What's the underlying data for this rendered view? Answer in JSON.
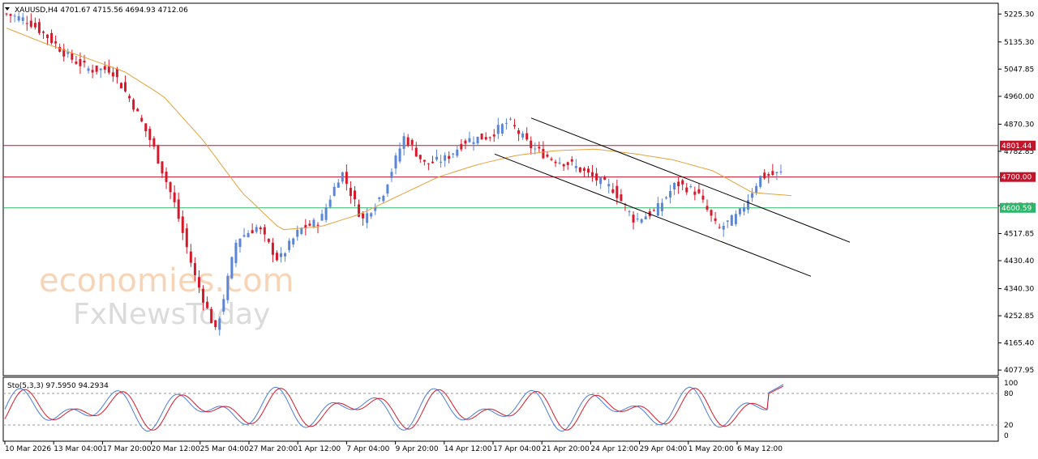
{
  "header": {
    "symbol": "XAUUSD,H4",
    "ohlc": "4701.67 4715.56 4694.93 4712.06"
  },
  "watermark": {
    "line1": "economies.com",
    "line2": "FxNewsToday"
  },
  "levels": [
    {
      "value": 4801.44,
      "label": "4801.44",
      "color": "#c0142b"
    },
    {
      "value": 4700.0,
      "label": "4700.00",
      "color": "#c0142b"
    },
    {
      "value": 4600.59,
      "label": "4600.59",
      "color": "#2db56a"
    }
  ],
  "colors": {
    "bull": "#5b86d6",
    "bear": "#d71a2b",
    "ma": "#e3a23c",
    "grid": "#cfcfcf"
  },
  "stoch_panel": {
    "label": "Sto(5,3,3) 97.5950 94.2934",
    "ticks": [
      "100",
      "80",
      "20",
      "0"
    ]
  },
  "chart_data": {
    "type": "candlestick",
    "y_ticks": [
      "5225.30",
      "5135.30",
      "5047.85",
      "4960.00",
      "4870.30",
      "4782.85",
      "4700.00",
      "4607.85",
      "4517.85",
      "4430.40",
      "4340.30",
      "4252.85",
      "4165.40",
      "4077.95"
    ],
    "ylim": [
      4060,
      5260
    ],
    "x_ticks": [
      "10 Mar 2026",
      "13 Mar 04:00",
      "17 Mar 20:00",
      "20 Mar 12:00",
      "25 Mar 04:00",
      "27 Mar 20:00",
      "1 Apr 12:00",
      "7 Apr 04:00",
      "9 Apr 20:00",
      "14 Apr 12:00",
      "17 Apr 04:00",
      "21 Apr 20:00",
      "24 Apr 12:00",
      "29 Apr 04:00",
      "1 May 20:00",
      "6 May 12:00"
    ],
    "price_anchors": [
      5225,
      5205,
      5150,
      5085,
      5045,
      5048,
      4940,
      4800,
      4620,
      4380,
      4200,
      4500,
      4540,
      4430,
      4530,
      4560,
      4720,
      4560,
      4650,
      4830,
      4740,
      4760,
      4820,
      4830,
      4880,
      4800,
      4760,
      4740,
      4700,
      4660,
      4560,
      4590,
      4680,
      4650,
      4530,
      4580,
      4700,
      4712
    ],
    "ma_anchors": [
      5180,
      5130,
      5085,
      5040,
      4960,
      4820,
      4650,
      4530,
      4540,
      4580,
      4640,
      4700,
      4740,
      4770,
      4785,
      4790,
      4775,
      4755,
      4720,
      4650,
      4640
    ],
    "channel": {
      "upper": [
        [
          4890,
          4490
        ]
      ],
      "lower": [
        [
          4774,
          4380
        ]
      ]
    },
    "stochastic": {
      "k": 97.595,
      "d": 94.2934,
      "levels": [
        80,
        20
      ]
    }
  }
}
